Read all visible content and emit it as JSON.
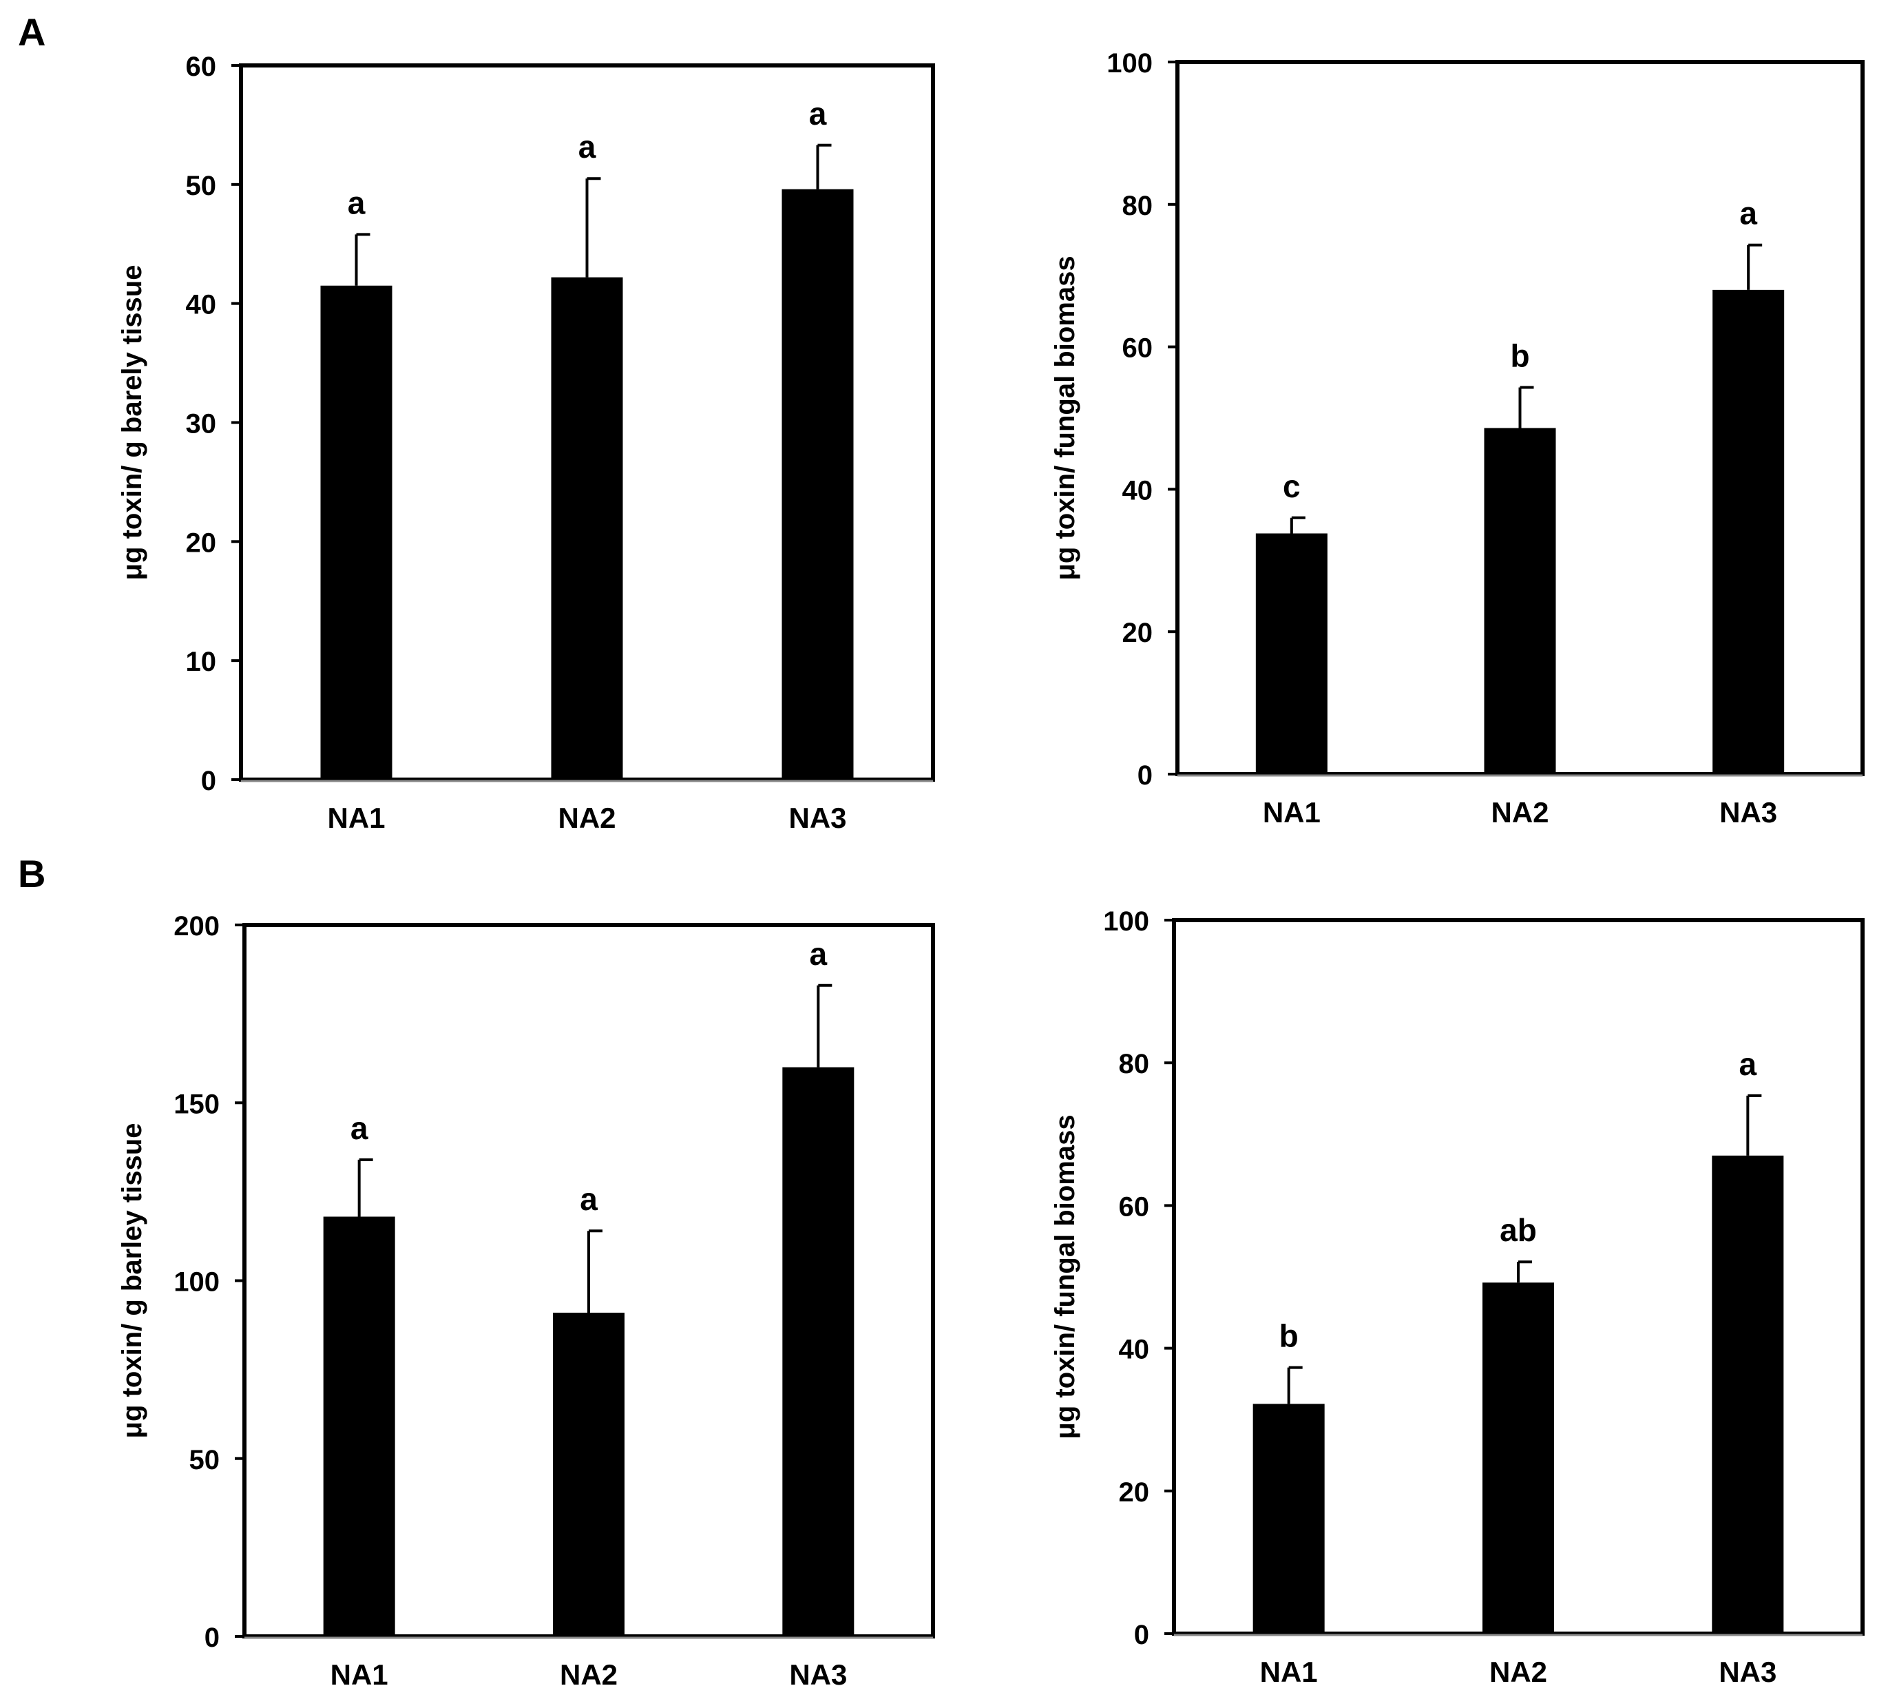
{
  "figure": {
    "panel_labels": [
      "A",
      "B"
    ]
  },
  "chart_data": [
    {
      "panel": "A",
      "type": "bar",
      "title": "",
      "xlabel": "",
      "ylabel": "μg toxin/ g barely tissue",
      "categories": [
        "NA1",
        "NA2",
        "NA3"
      ],
      "values": [
        41.5,
        42.2,
        49.6
      ],
      "errors": [
        4.3,
        8.3,
        3.7
      ],
      "letters": [
        "a",
        "a",
        "a"
      ],
      "ylim": [
        0,
        60
      ],
      "yticks": [
        0,
        10,
        20,
        30,
        40,
        50,
        60
      ],
      "bar_color": "#000000",
      "grid": false
    },
    {
      "panel": "A",
      "type": "bar",
      "title": "",
      "xlabel": "",
      "ylabel": "μg toxin/ fungal biomass",
      "categories": [
        "NA1",
        "NA2",
        "NA3"
      ],
      "values": [
        33.8,
        48.6,
        68.0
      ],
      "errors": [
        2.2,
        5.7,
        6.3
      ],
      "letters": [
        "c",
        "b",
        "a"
      ],
      "ylim": [
        0,
        100
      ],
      "yticks": [
        0,
        20,
        40,
        60,
        80,
        100
      ],
      "bar_color": "#000000",
      "grid": false
    },
    {
      "panel": "B",
      "type": "bar",
      "title": "",
      "xlabel": "",
      "ylabel": "μg toxin/ g barley tissue",
      "categories": [
        "NA1",
        "NA2",
        "NA3"
      ],
      "values": [
        118,
        91,
        160
      ],
      "errors": [
        16,
        23,
        23
      ],
      "letters": [
        "a",
        "a",
        "a"
      ],
      "ylim": [
        0,
        200
      ],
      "yticks": [
        0,
        50,
        100,
        150,
        200
      ],
      "bar_color": "#000000",
      "grid": false
    },
    {
      "panel": "B",
      "type": "bar",
      "title": "",
      "xlabel": "",
      "ylabel": "μg toxin/ fungal biomass",
      "categories": [
        "NA1",
        "NA2",
        "NA3"
      ],
      "values": [
        32.2,
        49.2,
        67.0
      ],
      "errors": [
        5.1,
        2.9,
        8.4
      ],
      "letters": [
        "b",
        "ab",
        "a"
      ],
      "ylim": [
        0,
        100
      ],
      "yticks": [
        0,
        20,
        40,
        60,
        80,
        100
      ],
      "bar_color": "#000000",
      "grid": false
    }
  ]
}
